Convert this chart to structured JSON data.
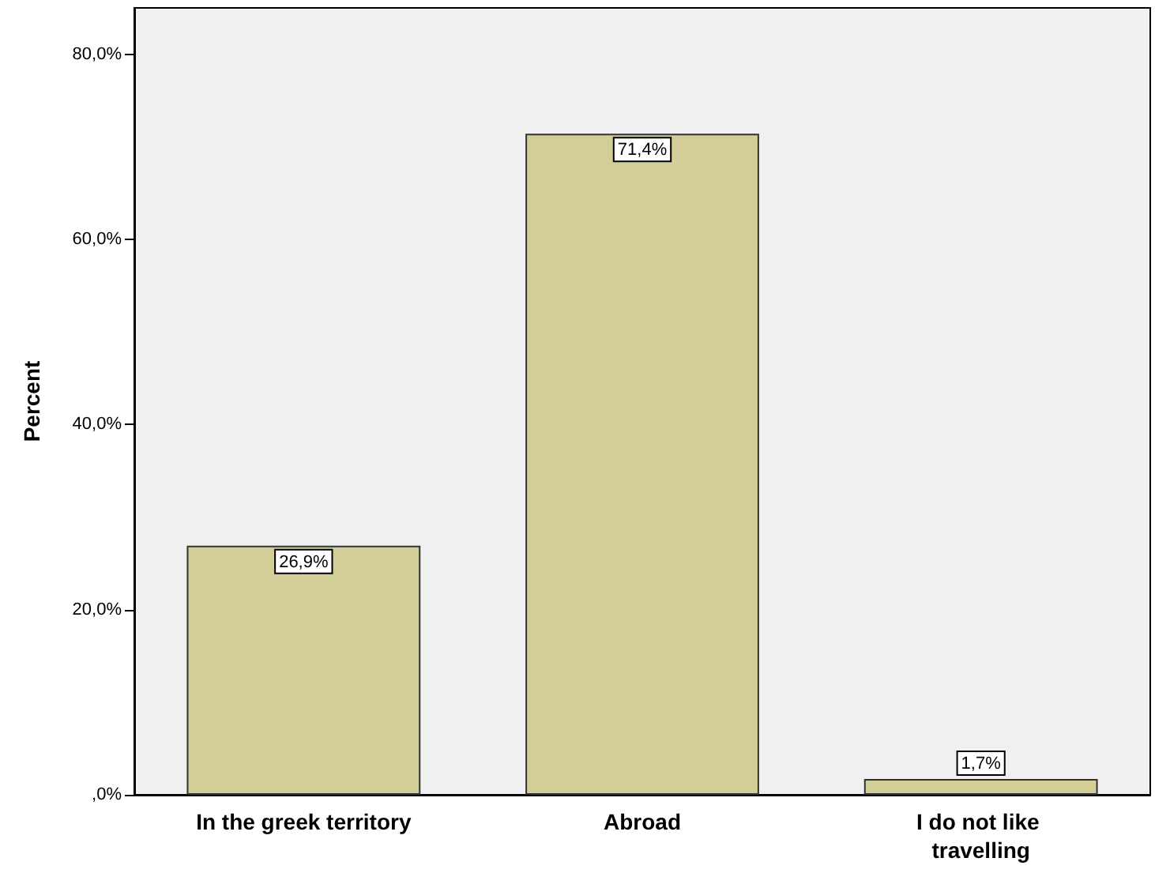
{
  "chart_data": {
    "type": "bar",
    "ylabel": "Percent",
    "categories": [
      "In the greek territory",
      "Abroad",
      "I do not like travelling"
    ],
    "values": [
      26.9,
      71.4,
      1.7
    ],
    "value_labels": [
      "26,9%",
      "71,4%",
      "1,7%"
    ],
    "color": "#d3ce97",
    "ylim": [
      0,
      85
    ],
    "yticks": [
      {
        "value": 0,
        "label": ",0%"
      },
      {
        "value": 20,
        "label": "20,0%"
      },
      {
        "value": 40,
        "label": "40,0%"
      },
      {
        "value": 60,
        "label": "60,0%"
      },
      {
        "value": 80,
        "label": "80,0%"
      }
    ],
    "grid": false
  }
}
